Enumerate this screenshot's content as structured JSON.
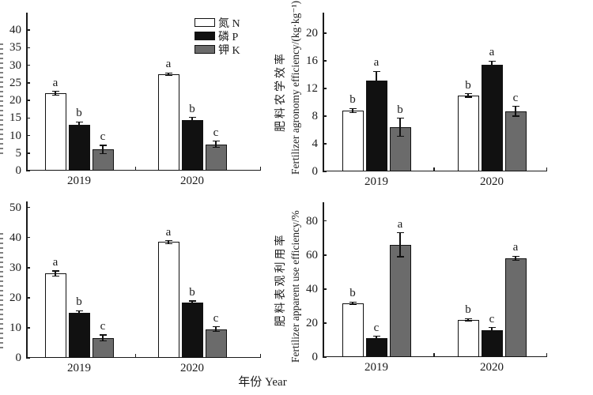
{
  "figure": {
    "xlabel": "年份 Year",
    "background": "#ffffff",
    "ink": "#1a1a1a"
  },
  "legend": {
    "items": [
      {
        "label": "氮 N",
        "color": "#ffffff"
      },
      {
        "label": "磷 P",
        "color": "#111111"
      },
      {
        "label": "钾 K",
        "color": "#6b6b6b"
      }
    ]
  },
  "chart_data": [
    {
      "panel": "top-left",
      "type": "bar",
      "categories": [
        "2019",
        "2020"
      ],
      "ylabel_zh": "",
      "ylabel_en": "",
      "ylabel_visible": false,
      "ylim": [
        0,
        45
      ],
      "yticks": [
        0,
        5,
        10,
        15,
        20,
        25,
        30,
        35,
        40
      ],
      "series": [
        {
          "name": "氮 N",
          "color": "#ffffff",
          "values": [
            22,
            27.5
          ],
          "errors": [
            0.6,
            0.3
          ],
          "letters": [
            "a",
            "a"
          ]
        },
        {
          "name": "磷 P",
          "color": "#111111",
          "values": [
            13,
            14.5
          ],
          "errors": [
            0.9,
            0.6
          ],
          "letters": [
            "b",
            "b"
          ]
        },
        {
          "name": "钾 K",
          "color": "#6b6b6b",
          "values": [
            6,
            7.5
          ],
          "errors": [
            1.2,
            0.9
          ],
          "letters": [
            "c",
            "c"
          ]
        }
      ]
    },
    {
      "panel": "top-right",
      "type": "bar",
      "categories": [
        "2019",
        "2020"
      ],
      "ylabel_zh": "肥料农学效率",
      "ylabel_en": "Fertilizer agronomy efficiency/(kg·kg⁻¹)",
      "ylabel_visible": true,
      "ylim": [
        0,
        23
      ],
      "yticks": [
        0,
        4,
        8,
        12,
        16,
        20
      ],
      "series": [
        {
          "name": "氮 N",
          "color": "#ffffff",
          "values": [
            8.8,
            11
          ],
          "errors": [
            0.3,
            0.25
          ],
          "letters": [
            "b",
            "b"
          ]
        },
        {
          "name": "磷 P",
          "color": "#111111",
          "values": [
            13.2,
            15.4
          ],
          "errors": [
            1.3,
            0.6
          ],
          "letters": [
            "a",
            "a"
          ]
        },
        {
          "name": "钾 K",
          "color": "#6b6b6b",
          "values": [
            6.4,
            8.7
          ],
          "errors": [
            1.3,
            0.7
          ],
          "letters": [
            "b",
            "c"
          ]
        }
      ]
    },
    {
      "panel": "bottom-left",
      "type": "bar",
      "categories": [
        "2019",
        "2020"
      ],
      "ylabel_zh": "",
      "ylabel_en": "",
      "ylabel_visible": false,
      "ylim": [
        0,
        52
      ],
      "yticks": [
        0,
        10,
        20,
        30,
        40,
        50
      ],
      "series": [
        {
          "name": "氮 N",
          "color": "#ffffff",
          "values": [
            28,
            38.5
          ],
          "errors": [
            0.9,
            0.5
          ],
          "letters": [
            "a",
            "a"
          ]
        },
        {
          "name": "磷 P",
          "color": "#111111",
          "values": [
            15,
            18.3
          ],
          "errors": [
            0.7,
            0.6
          ],
          "letters": [
            "b",
            "b"
          ]
        },
        {
          "name": "钾 K",
          "color": "#6b6b6b",
          "values": [
            6.6,
            9.5
          ],
          "errors": [
            1.0,
            0.8
          ],
          "letters": [
            "c",
            "c"
          ]
        }
      ]
    },
    {
      "panel": "bottom-right",
      "type": "bar",
      "categories": [
        "2019",
        "2020"
      ],
      "ylabel_zh": "肥料表观利用率",
      "ylabel_en": "Fertilizer apparent use efficiency/%",
      "ylabel_visible": true,
      "ylim": [
        0,
        91
      ],
      "yticks": [
        0,
        20,
        40,
        60,
        80
      ],
      "series": [
        {
          "name": "氮 N",
          "color": "#ffffff",
          "values": [
            31.5,
            22
          ],
          "errors": [
            0.8,
            0.7
          ],
          "letters": [
            "b",
            "b"
          ]
        },
        {
          "name": "磷 P",
          "color": "#111111",
          "values": [
            11,
            15.8
          ],
          "errors": [
            1.2,
            1.6
          ],
          "letters": [
            "c",
            "c"
          ]
        },
        {
          "name": "钾 K",
          "color": "#6b6b6b",
          "values": [
            66,
            58
          ],
          "errors": [
            7,
            1.3
          ],
          "letters": [
            "a",
            "a"
          ]
        }
      ]
    }
  ]
}
